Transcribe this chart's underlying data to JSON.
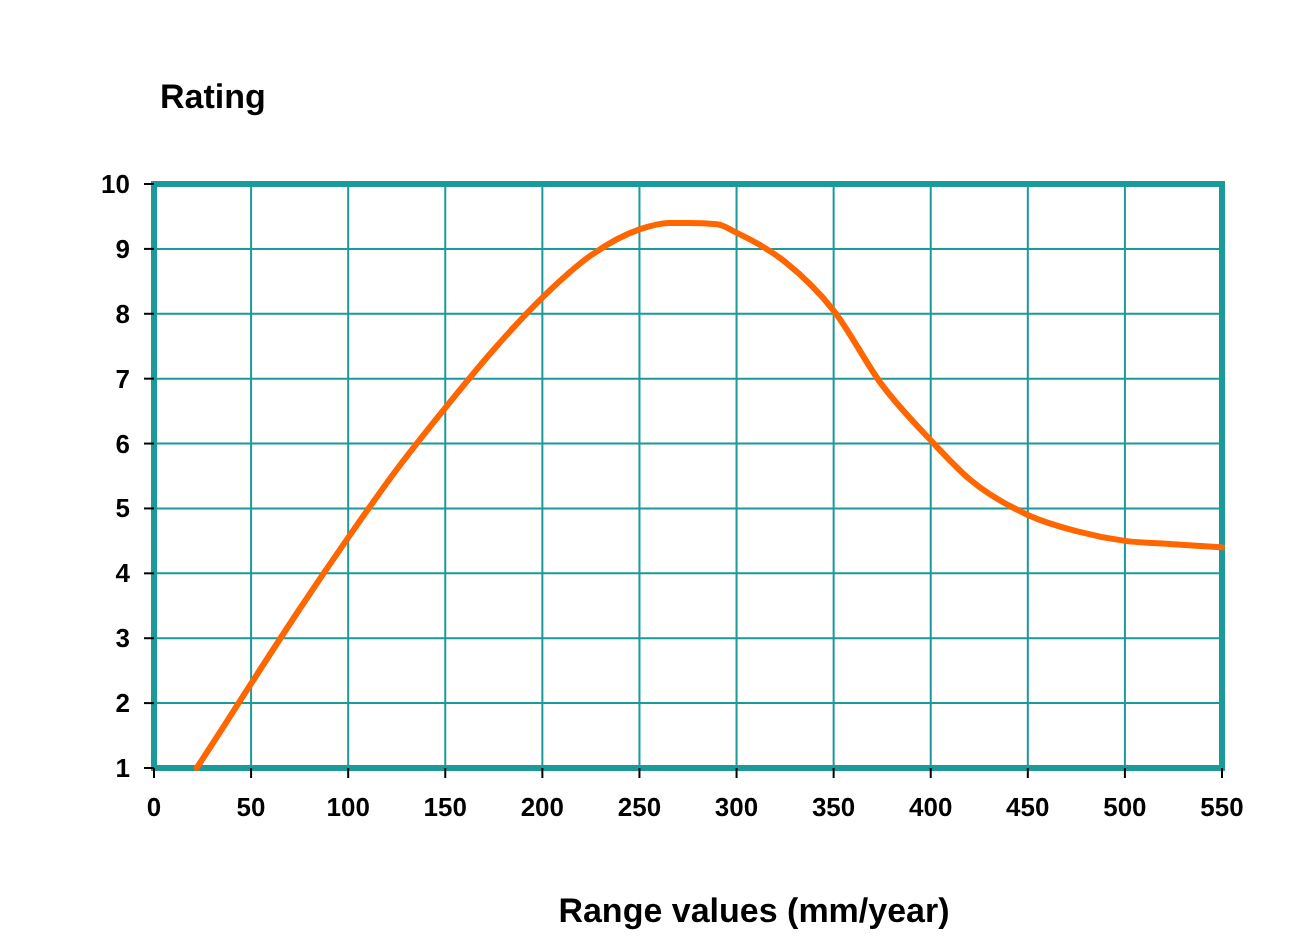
{
  "chart_data": {
    "type": "line",
    "ylabel": "Rating",
    "xlabel": "Range values (mm/year)",
    "x": [
      22,
      35,
      50,
      75,
      100,
      125,
      150,
      175,
      200,
      225,
      250,
      265,
      275,
      290,
      300,
      325,
      350,
      375,
      400,
      420,
      450,
      475,
      500,
      525,
      550
    ],
    "series": [
      {
        "color": "#ff6600",
        "values": [
          1,
          1.6,
          2.3,
          3.45,
          4.55,
          5.6,
          6.55,
          7.45,
          8.25,
          8.9,
          9.3,
          9.4,
          9.4,
          9.38,
          9.25,
          8.8,
          8.05,
          6.9,
          6.05,
          5.45,
          4.9,
          4.65,
          4.5,
          4.45,
          4.4
        ]
      }
    ],
    "xlim": [
      0,
      550
    ],
    "xticks": [
      0,
      50,
      100,
      150,
      200,
      250,
      300,
      350,
      400,
      450,
      500,
      550
    ],
    "ylim": [
      1,
      10
    ],
    "yticks": [
      1,
      2,
      3,
      4,
      5,
      6,
      7,
      8,
      9,
      10
    ],
    "grid": true,
    "marker": "none",
    "line_style": "solid"
  }
}
